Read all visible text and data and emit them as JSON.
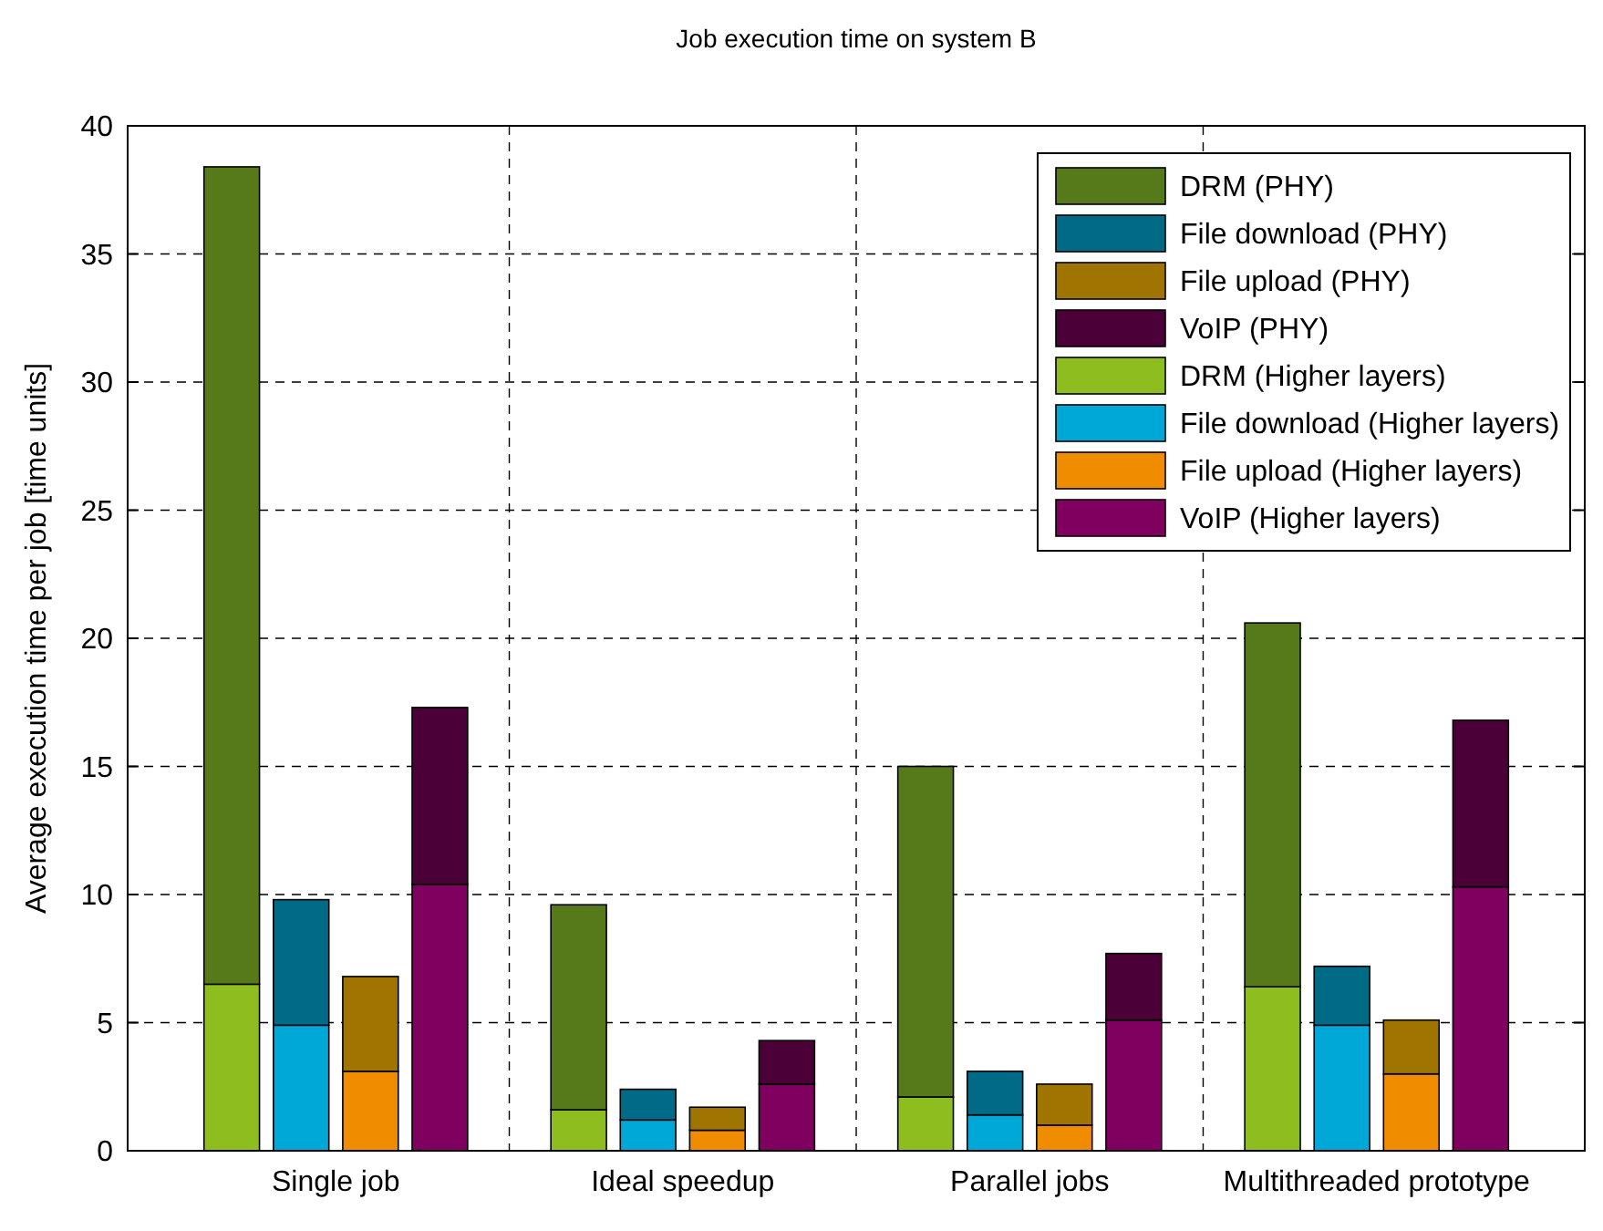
{
  "chart_data": {
    "type": "bar",
    "title": "Job execution time on system B",
    "ylabel": "Average execution time per job [time units]",
    "categories": [
      null,
      null,
      null,
      null,
      null,
      null,
      null,
      null,
      null,
      null,
      null,
      null,
      null,
      null,
      null,
      null,
      null,
      null,
      null,
      null,
      null
    ],
    "annotations": [
      "Single job",
      "Ideal speedup",
      "Parallel jobs",
      "Multithreaded prototype"
    ],
    "stacked": true,
    "ylim": [
      0,
      40
    ],
    "yticks": [
      0,
      5,
      10,
      15,
      20,
      25,
      30,
      35,
      40
    ],
    "grid": true,
    "legend": "top right",
    "series": [
      {
        "name": "DRM (Higher layers)",
        "color": "#8dbd1f",
        "values": [
          null,
          6.5,
          null,
          null,
          null,
          null,
          1.6,
          null,
          null,
          null,
          null,
          2.1,
          null,
          null,
          null,
          null,
          6.4,
          null,
          null,
          null,
          null
        ]
      },
      {
        "name": "File download (Higher layers)",
        "color": "#00a8d8",
        "values": [
          null,
          null,
          4.9,
          null,
          null,
          null,
          null,
          1.2,
          null,
          null,
          null,
          null,
          1.4,
          null,
          null,
          null,
          null,
          4.9,
          null,
          null,
          null
        ]
      },
      {
        "name": "File upload (Higher layers)",
        "color": "#f08c00",
        "values": [
          null,
          null,
          null,
          3.1,
          null,
          null,
          null,
          null,
          0.8,
          null,
          null,
          null,
          null,
          1.0,
          null,
          null,
          null,
          null,
          3.0,
          null,
          null
        ]
      },
      {
        "name": "VoIP (Higher layers)",
        "color": "#800060",
        "values": [
          null,
          null,
          null,
          null,
          10.4,
          null,
          null,
          null,
          null,
          2.6,
          null,
          null,
          null,
          null,
          5.1,
          null,
          null,
          null,
          null,
          10.3,
          null
        ]
      },
      {
        "name": "DRM (PHY)",
        "color": "#567a1a",
        "values": [
          null,
          31.9,
          null,
          null,
          null,
          null,
          8.0,
          null,
          null,
          null,
          null,
          12.9,
          null,
          null,
          null,
          null,
          14.2,
          null,
          null,
          null,
          null
        ]
      },
      {
        "name": "File download (PHY)",
        "color": "#006a87",
        "values": [
          null,
          null,
          4.9,
          null,
          null,
          null,
          null,
          1.2,
          null,
          null,
          null,
          null,
          1.7,
          null,
          null,
          null,
          null,
          2.3,
          null,
          null,
          null
        ]
      },
      {
        "name": "File upload (PHY)",
        "color": "#a07400",
        "values": [
          null,
          null,
          null,
          3.7,
          null,
          null,
          null,
          null,
          0.9,
          null,
          null,
          null,
          null,
          1.6,
          null,
          null,
          null,
          null,
          2.1,
          null,
          null
        ]
      },
      {
        "name": "VoIP (PHY)",
        "color": "#4c0038",
        "values": [
          null,
          null,
          null,
          null,
          6.9,
          null,
          null,
          null,
          null,
          1.7,
          null,
          null,
          null,
          null,
          2.6,
          null,
          null,
          null,
          null,
          6.5,
          null
        ]
      }
    ]
  }
}
